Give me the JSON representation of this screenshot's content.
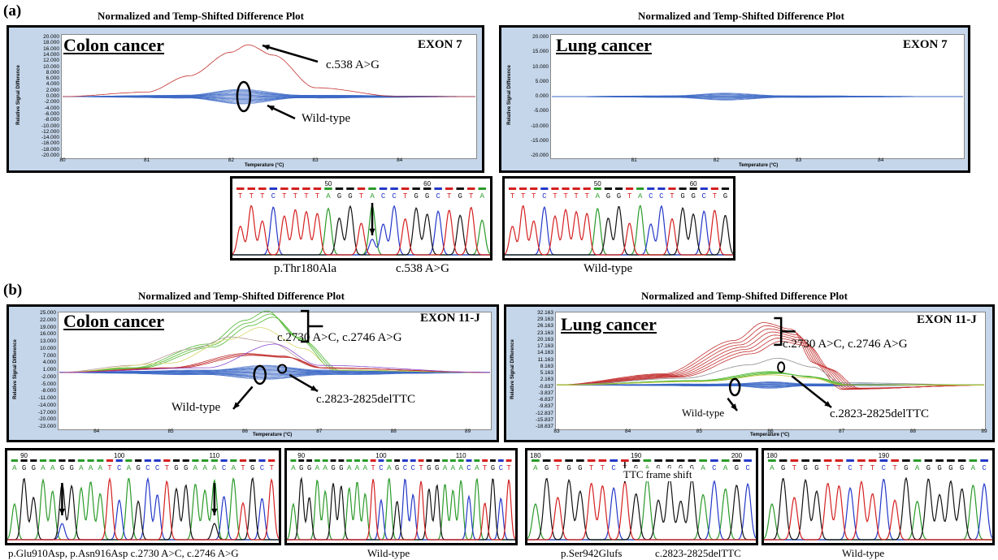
{
  "panel_a": {
    "label": "(a)",
    "plot_title": "Normalized and Temp-Shifted Difference Plot",
    "colon": {
      "inset": "Colon cancer",
      "exon": "EXON 7",
      "ylabel": "Relative Signal Difference",
      "xlabel": "Temperature (°C)",
      "yticks": [
        "20.000",
        "18.000",
        "16.000",
        "14.000",
        "12.000",
        "10.000",
        "8.000",
        "6.000",
        "4.000",
        "2.000",
        "0.000",
        "-2.000",
        "-4.000",
        "-6.000",
        "-8.000",
        "-10.000",
        "-12.000",
        "-14.000",
        "-16.000",
        "-18.000",
        "-20.000"
      ],
      "xticks": [
        "80",
        "81",
        "82",
        "83",
        "84"
      ],
      "annotations": [
        "c.538 A>G",
        "Wild-type"
      ]
    },
    "lung": {
      "inset": "Lung cancer",
      "exon": "EXON 7",
      "ylabel": "Relative Signal Difference",
      "xlabel": "Temperature (°C)",
      "yticks": [
        "20.000",
        "15.000",
        "10.000",
        "5.000",
        "0.000",
        "-5.000",
        "-10.000",
        "-15.000",
        "-20.000"
      ],
      "xticks": [
        "81",
        "82",
        "83",
        "84"
      ]
    },
    "seq_colon": {
      "numbers": [
        "50",
        "60"
      ],
      "bases": "TTTCTTTTAGGTACCTGGCTGTA",
      "captions": [
        "p.Thr180Ala",
        "c.538 A>G"
      ]
    },
    "seq_lung": {
      "numbers": [
        "50",
        "60"
      ],
      "bases": "TTTCTTTTAGGTACCTGGCTG",
      "captions": [
        "Wild-type"
      ]
    }
  },
  "panel_b": {
    "label": "(b)",
    "plot_title": "Normalized and Temp-Shifted Difference Plot",
    "colon": {
      "inset": "Colon cancer",
      "exon": "EXON 11-J",
      "ylabel": "Relative Signal Difference",
      "xlabel": "Temperature (°C)",
      "yticks": [
        "25.000",
        "22.000",
        "19.000",
        "16.000",
        "13.000",
        "10.000",
        "7.000",
        "4.000",
        "1.000",
        "-2.000",
        "-5.000",
        "-8.000",
        "-11.000",
        "-14.000",
        "-17.000",
        "-20.000",
        "-23.000"
      ],
      "xticks": [
        "84",
        "85",
        "86",
        "87",
        "88",
        "89"
      ],
      "annotations": [
        "c.2730 A>C, c.2746 A>G",
        "Wild-type",
        "c.2823-2825delTTC"
      ]
    },
    "lung": {
      "inset": "Lung cancer",
      "exon": "EXON 11-J",
      "ylabel": "Relative Signal Difference",
      "xlabel": "Temperature (°C)",
      "yticks": [
        "32.163",
        "29.163",
        "26.163",
        "23.163",
        "20.163",
        "17.163",
        "14.163",
        "11.163",
        "8.163",
        "5.163",
        "2.163",
        "-0.837",
        "-3.837",
        "-6.837",
        "-9.837",
        "-12.837",
        "-15.837",
        "-18.837"
      ],
      "xticks": [
        "83",
        "84",
        "85",
        "86",
        "87",
        "88",
        "89"
      ],
      "annotations": [
        "c.2730 A>C, c.2746 A>G",
        "Wild-type",
        "c.2823-2825delTTC"
      ]
    },
    "seq1": {
      "numbers": [
        "90",
        "100",
        "110"
      ],
      "bases": "AGGAAGGAAATCAGCCTGGAAACATGCT",
      "captions": [
        "p.Glu910Asp, p.Asn916Asp  c.2730 A>C, c.2746 A>G"
      ]
    },
    "seq2": {
      "numbers": [
        "90",
        "100",
        "110"
      ],
      "bases": "AGGAAGGAAATCAGCCTGGAAACATGCT",
      "captions": [
        "Wild-type"
      ]
    },
    "seq3": {
      "numbers": [
        "180",
        "190",
        "200"
      ],
      "bases": "AGTGGTTCTGAGGGGACAGC",
      "captions": [
        "p.Ser942Glufs",
        "c.2823-2825delTTC"
      ],
      "marker": "TTC frame shift"
    },
    "seq4": {
      "numbers": [
        "180",
        "190"
      ],
      "bases": "AGTGGTTCTTCTGAGGGGAC",
      "captions": [
        "Wild-type"
      ]
    }
  },
  "colors": {
    "wild": "#3a67c4",
    "mutant": "#c22f2f",
    "green": "#52b833",
    "A": "#2a9a2a",
    "C": "#2438c8",
    "G": "#111111",
    "T": "#d42020",
    "plotbg": "#c5d6ea"
  },
  "chart_data": [
    {
      "type": "line",
      "title": "Normalized and Temp-Shifted Difference Plot",
      "panel": "(a) Colon cancer EXON 7",
      "xlabel": "Temperature (°C)",
      "ylabel": "Relative Signal Difference",
      "xlim": [
        80,
        85
      ],
      "ylim": [
        -20,
        20
      ],
      "series": [
        {
          "name": "c.538 A>G",
          "x": [
            80,
            81,
            81.5,
            82,
            82.2,
            82.5,
            83,
            84,
            85
          ],
          "y": [
            0,
            1.5,
            7,
            15,
            17.5,
            14,
            3,
            0,
            0
          ]
        },
        {
          "name": "Wild-type",
          "x": [
            80,
            81.5,
            82.1,
            82.8,
            85
          ],
          "y": [
            0,
            0.5,
            2.5,
            0.5,
            0
          ]
        }
      ]
    },
    {
      "type": "line",
      "title": "Normalized and Temp-Shifted Difference Plot",
      "panel": "(a) Lung cancer EXON 7",
      "xlabel": "Temperature (°C)",
      "ylabel": "Relative Signal Difference",
      "xlim": [
        80,
        85
      ],
      "ylim": [
        -20,
        20
      ],
      "series": [
        {
          "name": "Wild-type",
          "x": [
            80,
            81.5,
            82.1,
            82.8,
            85
          ],
          "y": [
            0,
            0.3,
            1.2,
            0.3,
            0
          ]
        }
      ]
    },
    {
      "type": "line",
      "title": "Normalized and Temp-Shifted Difference Plot",
      "panel": "(b) Colon cancer EXON 11-J",
      "xlabel": "Temperature (°C)",
      "ylabel": "Relative Signal Difference",
      "xlim": [
        83.5,
        89.3
      ],
      "ylim": [
        -23,
        25
      ],
      "series": [
        {
          "name": "c.2730 A>C, c.2746 A>G",
          "x": [
            83.5,
            84.5,
            85.5,
            86,
            86.3,
            86.7,
            87.2,
            89.3
          ],
          "y": [
            0,
            2,
            12,
            22,
            26,
            15,
            1,
            0
          ]
        },
        {
          "name": "c.2823-2825delTTC",
          "x": [
            83.5,
            85,
            86,
            86.5,
            87,
            89.3
          ],
          "y": [
            0,
            2,
            8,
            7,
            2,
            0
          ]
        },
        {
          "name": "Wild-type",
          "x": [
            83.5,
            85.5,
            86.3,
            87,
            89.3
          ],
          "y": [
            0,
            1,
            3,
            1,
            0
          ]
        }
      ]
    },
    {
      "type": "line",
      "title": "Normalized and Temp-Shifted Difference Plot",
      "panel": "(b) Lung cancer EXON 11-J",
      "xlabel": "Temperature (°C)",
      "ylabel": "Relative Signal Difference",
      "xlim": [
        83,
        89
      ],
      "ylim": [
        -18.837,
        32.163
      ],
      "series": [
        {
          "name": "c.2730 A>C, c.2746 A>G",
          "x": [
            83,
            84.5,
            85.5,
            85.9,
            86.3,
            86.6,
            87,
            89
          ],
          "y": [
            0,
            5,
            20,
            28,
            25,
            10,
            -2,
            0
          ]
        },
        {
          "name": "c.2823-2825delTTC",
          "x": [
            83,
            85,
            86,
            86.5,
            87,
            89
          ],
          "y": [
            0,
            2,
            6,
            4,
            0,
            0
          ]
        },
        {
          "name": "Wild-type",
          "x": [
            83,
            85.5,
            86,
            86.5,
            89
          ],
          "y": [
            0,
            0.5,
            1.5,
            0.5,
            0
          ]
        }
      ]
    }
  ]
}
